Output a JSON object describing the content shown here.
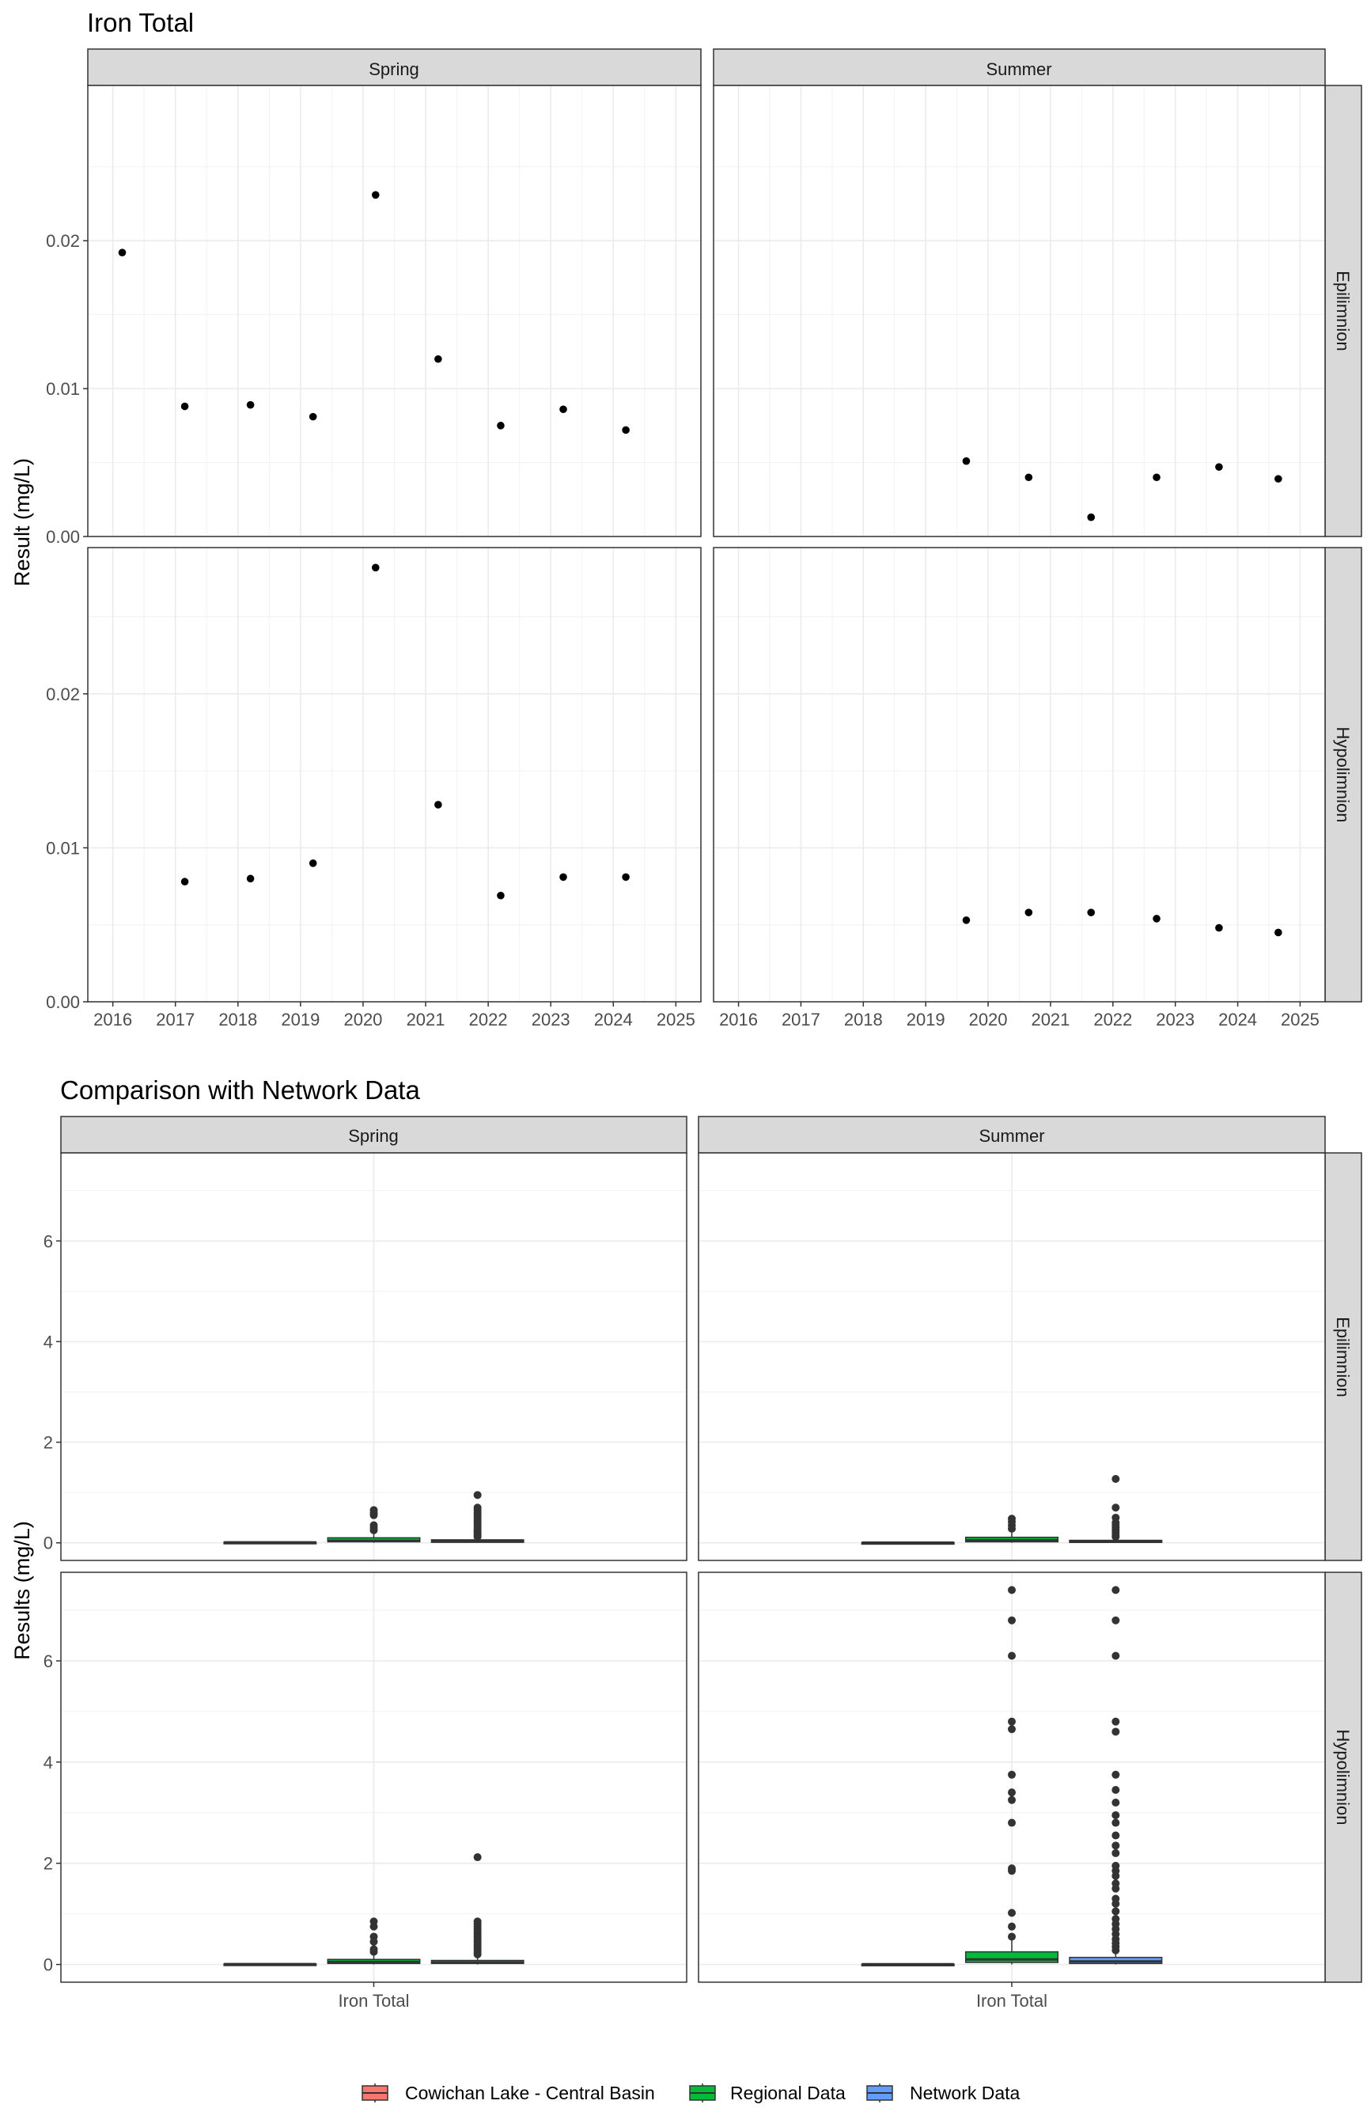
{
  "chart_data": [
    {
      "type": "scatter",
      "title": "Iron Total",
      "ylabel": "Result (mg/L)",
      "xlabel": "",
      "x_ticks": [
        "2016",
        "2017",
        "2018",
        "2019",
        "2020",
        "2021",
        "2022",
        "2023",
        "2024",
        "2025"
      ],
      "xlim": [
        2015.6,
        2025.4
      ],
      "facets": {
        "columns": [
          "Spring",
          "Summer"
        ],
        "rows": [
          "Epilimnion",
          "Hypolimnion"
        ]
      },
      "panels": [
        {
          "row": "Epilimnion",
          "ylim": [
            0,
            0.0305
          ],
          "y_ticks": [
            0,
            0.01,
            0.02
          ],
          "y_tick_labels": [
            "0.00",
            "0.01",
            "0.02"
          ],
          "cells": [
            {
              "column": "Spring",
              "points": [
                {
                  "x": 2016.15,
                  "y": 0.0192
                },
                {
                  "x": 2017.15,
                  "y": 0.0088
                },
                {
                  "x": 2018.2,
                  "y": 0.0089
                },
                {
                  "x": 2019.2,
                  "y": 0.0081
                },
                {
                  "x": 2020.2,
                  "y": 0.0231
                },
                {
                  "x": 2021.2,
                  "y": 0.012
                },
                {
                  "x": 2022.2,
                  "y": 0.0075
                },
                {
                  "x": 2023.2,
                  "y": 0.0086
                },
                {
                  "x": 2024.2,
                  "y": 0.0072
                }
              ]
            },
            {
              "column": "Summer",
              "points": [
                {
                  "x": 2019.65,
                  "y": 0.0051
                },
                {
                  "x": 2020.65,
                  "y": 0.004
                },
                {
                  "x": 2021.65,
                  "y": 0.0013
                },
                {
                  "x": 2022.7,
                  "y": 0.004
                },
                {
                  "x": 2023.7,
                  "y": 0.0047
                },
                {
                  "x": 2024.65,
                  "y": 0.0039
                }
              ]
            }
          ]
        },
        {
          "row": "Hypolimnion",
          "ylim": [
            0,
            0.0295
          ],
          "y_ticks": [
            0,
            0.01,
            0.02
          ],
          "y_tick_labels": [
            "0.00",
            "0.01",
            "0.02"
          ],
          "cells": [
            {
              "column": "Spring",
              "points": [
                {
                  "x": 2017.15,
                  "y": 0.0078
                },
                {
                  "x": 2018.2,
                  "y": 0.008
                },
                {
                  "x": 2019.2,
                  "y": 0.009
                },
                {
                  "x": 2020.2,
                  "y": 0.0282
                },
                {
                  "x": 2021.2,
                  "y": 0.0128
                },
                {
                  "x": 2022.2,
                  "y": 0.0069
                },
                {
                  "x": 2023.2,
                  "y": 0.0081
                },
                {
                  "x": 2024.2,
                  "y": 0.0081
                }
              ]
            },
            {
              "column": "Summer",
              "points": [
                {
                  "x": 2019.65,
                  "y": 0.0053
                },
                {
                  "x": 2020.65,
                  "y": 0.0058
                },
                {
                  "x": 2021.65,
                  "y": 0.0058
                },
                {
                  "x": 2022.7,
                  "y": 0.0054
                },
                {
                  "x": 2023.7,
                  "y": 0.0048
                },
                {
                  "x": 2024.65,
                  "y": 0.0045
                }
              ]
            }
          ]
        }
      ],
      "point_color": "#000000",
      "grid": true
    },
    {
      "type": "box",
      "title": "Comparison with Network Data",
      "ylabel": "Results (mg/L)",
      "xlabel": "",
      "category": "Iron Total",
      "ylim": [
        -0.35,
        7.75
      ],
      "y_ticks": [
        0,
        2,
        4,
        6
      ],
      "y_tick_labels": [
        "0",
        "2",
        "4",
        "6"
      ],
      "facets": {
        "columns": [
          "Spring",
          "Summer"
        ],
        "rows": [
          "Epilimnion",
          "Hypolimnion"
        ]
      },
      "legend": {
        "position": "bottom",
        "entries": [
          {
            "label": "Cowichan Lake - Central Basin",
            "color": "#F8766D"
          },
          {
            "label": "Regional Data",
            "color": "#00BA38"
          },
          {
            "label": "Network Data",
            "color": "#619CFF"
          }
        ]
      },
      "panels": [
        {
          "row": "Epilimnion",
          "column": "Spring",
          "boxes": [
            {
              "group": "Cowichan Lake - Central Basin",
              "min": 0.005,
              "q1": 0.007,
              "median": 0.009,
              "q3": 0.012,
              "max": 0.023,
              "outliers": []
            },
            {
              "group": "Regional Data",
              "min": 0.0,
              "q1": 0.02,
              "median": 0.04,
              "q3": 0.1,
              "max": 0.2,
              "outliers": [
                0.25,
                0.3,
                0.35,
                0.55,
                0.6,
                0.65
              ]
            },
            {
              "group": "Network Data",
              "min": 0.0,
              "q1": 0.01,
              "median": 0.03,
              "q3": 0.06,
              "max": 0.1,
              "outliers": [
                0.12,
                0.15,
                0.18,
                0.22,
                0.25,
                0.3,
                0.35,
                0.4,
                0.45,
                0.5,
                0.55,
                0.6,
                0.65,
                0.7,
                0.95
              ]
            }
          ]
        },
        {
          "row": "Epilimnion",
          "column": "Summer",
          "boxes": [
            {
              "group": "Cowichan Lake - Central Basin",
              "min": 0.001,
              "q1": 0.003,
              "median": 0.004,
              "q3": 0.005,
              "max": 0.005,
              "outliers": []
            },
            {
              "group": "Regional Data",
              "min": 0.0,
              "q1": 0.02,
              "median": 0.05,
              "q3": 0.11,
              "max": 0.2,
              "outliers": [
                0.28,
                0.35,
                0.42,
                0.48
              ]
            },
            {
              "group": "Network Data",
              "min": 0.0,
              "q1": 0.01,
              "median": 0.02,
              "q3": 0.05,
              "max": 0.09,
              "outliers": [
                0.12,
                0.15,
                0.2,
                0.25,
                0.3,
                0.35,
                0.4,
                0.5,
                0.7,
                1.27
              ]
            }
          ]
        },
        {
          "row": "Hypolimnion",
          "column": "Spring",
          "boxes": [
            {
              "group": "Cowichan Lake - Central Basin",
              "min": 0.007,
              "q1": 0.008,
              "median": 0.008,
              "q3": 0.01,
              "max": 0.028,
              "outliers": []
            },
            {
              "group": "Regional Data",
              "min": 0.0,
              "q1": 0.02,
              "median": 0.05,
              "q3": 0.1,
              "max": 0.2,
              "outliers": [
                0.25,
                0.3,
                0.45,
                0.55,
                0.75,
                0.85
              ]
            },
            {
              "group": "Network Data",
              "min": 0.0,
              "q1": 0.02,
              "median": 0.04,
              "q3": 0.08,
              "max": 0.15,
              "outliers": [
                0.2,
                0.25,
                0.3,
                0.35,
                0.4,
                0.45,
                0.5,
                0.55,
                0.6,
                0.65,
                0.7,
                0.75,
                0.8,
                0.85,
                2.12
              ]
            }
          ]
        },
        {
          "row": "Hypolimnion",
          "column": "Summer",
          "boxes": [
            {
              "group": "Cowichan Lake - Central Basin",
              "min": 0.004,
              "q1": 0.005,
              "median": 0.005,
              "q3": 0.006,
              "max": 0.006,
              "outliers": []
            },
            {
              "group": "Regional Data",
              "min": 0.0,
              "q1": 0.04,
              "median": 0.1,
              "q3": 0.25,
              "max": 0.5,
              "outliers": [
                0.55,
                0.75,
                1.02,
                1.85,
                1.9,
                2.8,
                3.25,
                3.4,
                3.75,
                4.65,
                4.8,
                6.1,
                6.8,
                7.4
              ]
            },
            {
              "group": "Network Data",
              "min": 0.0,
              "q1": 0.02,
              "median": 0.06,
              "q3": 0.14,
              "max": 0.24,
              "outliers": [
                0.28,
                0.35,
                0.42,
                0.5,
                0.6,
                0.7,
                0.8,
                0.9,
                1.05,
                1.2,
                1.3,
                1.5,
                1.6,
                1.75,
                1.85,
                1.95,
                2.2,
                2.35,
                2.55,
                2.8,
                2.95,
                3.2,
                3.45,
                3.75,
                4.6,
                4.8,
                6.1,
                6.8,
                7.4
              ]
            }
          ]
        }
      ],
      "grid": true
    }
  ]
}
